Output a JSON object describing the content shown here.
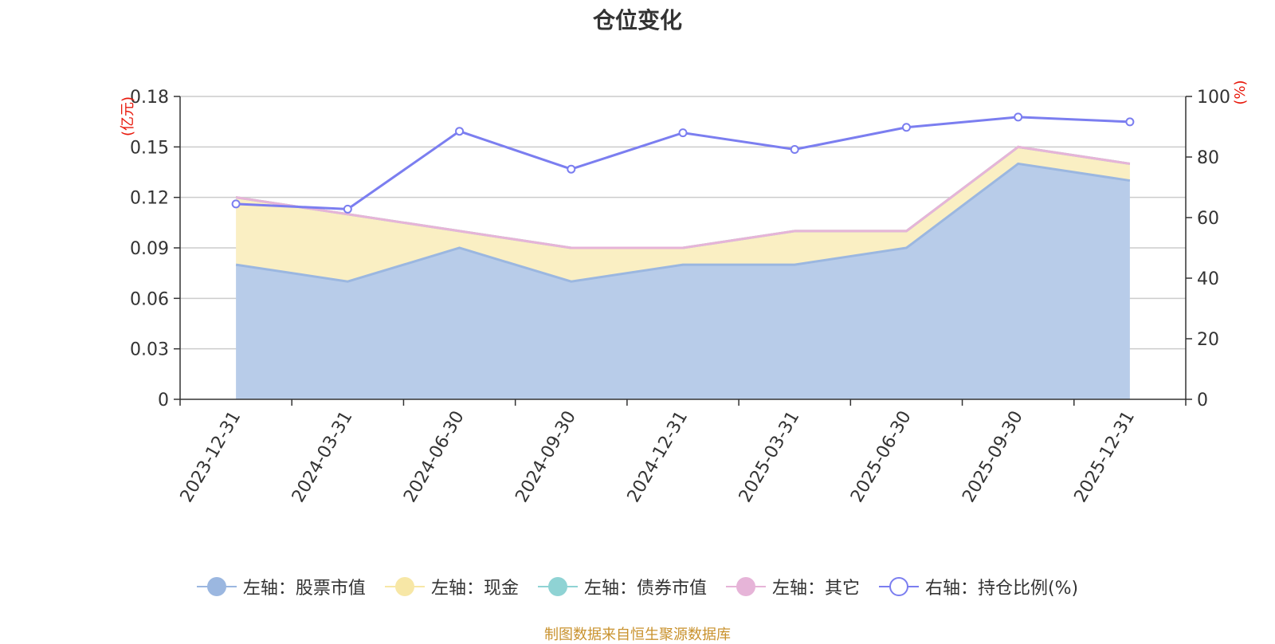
{
  "chart_data": {
    "type": "area",
    "title": "仓位变化",
    "categories": [
      "2023-12-31",
      "2024-03-31",
      "2024-06-30",
      "2024-09-30",
      "2024-12-31",
      "2025-03-31",
      "2025-06-30",
      "2025-09-30",
      "2025-12-31"
    ],
    "left_axis": {
      "label": "(亿元)",
      "ylim": [
        0,
        0.18
      ],
      "ticks": [
        "0",
        "0.03",
        "0.06",
        "0.09",
        "0.12",
        "0.15",
        "0.18"
      ]
    },
    "right_axis": {
      "label": "(%)",
      "ylim": [
        0,
        100
      ],
      "ticks": [
        "0",
        "20",
        "40",
        "60",
        "80",
        "100"
      ]
    },
    "series": [
      {
        "name": "左轴：股票市值",
        "axis": "left",
        "stacked": true,
        "color": "#9bb7e0",
        "fill": "#b8cce9",
        "values": [
          0.08,
          0.07,
          0.09,
          0.07,
          0.08,
          0.08,
          0.09,
          0.14,
          0.13
        ]
      },
      {
        "name": "左轴：现金",
        "axis": "left",
        "stacked": true,
        "color": "#f7e7a6",
        "fill": "#faefc3",
        "values": [
          0.04,
          0.04,
          0.01,
          0.02,
          0.01,
          0.02,
          0.01,
          0.01,
          0.01
        ]
      },
      {
        "name": "左轴：债券市值",
        "axis": "left",
        "stacked": true,
        "color": "#8fd3d4",
        "fill": "#b6e3e4",
        "values": [
          0,
          0,
          0,
          0,
          0,
          0,
          0,
          0,
          0
        ]
      },
      {
        "name": "左轴：其它",
        "axis": "left",
        "stacked": true,
        "color": "#e6b4d8",
        "fill": "#f2d7ea",
        "values": [
          0,
          0,
          0,
          0,
          0,
          0,
          0,
          0,
          0
        ]
      },
      {
        "name": "右轴：持仓比例(%)",
        "axis": "right",
        "type": "line",
        "color": "#7b7ef0",
        "values": [
          64.5,
          62.8,
          88.5,
          76.0,
          88.0,
          82.5,
          89.8,
          93.2,
          91.6
        ]
      }
    ],
    "legend_position": "bottom",
    "grid": true
  },
  "source_note": "制图数据来自恒生聚源数据库"
}
